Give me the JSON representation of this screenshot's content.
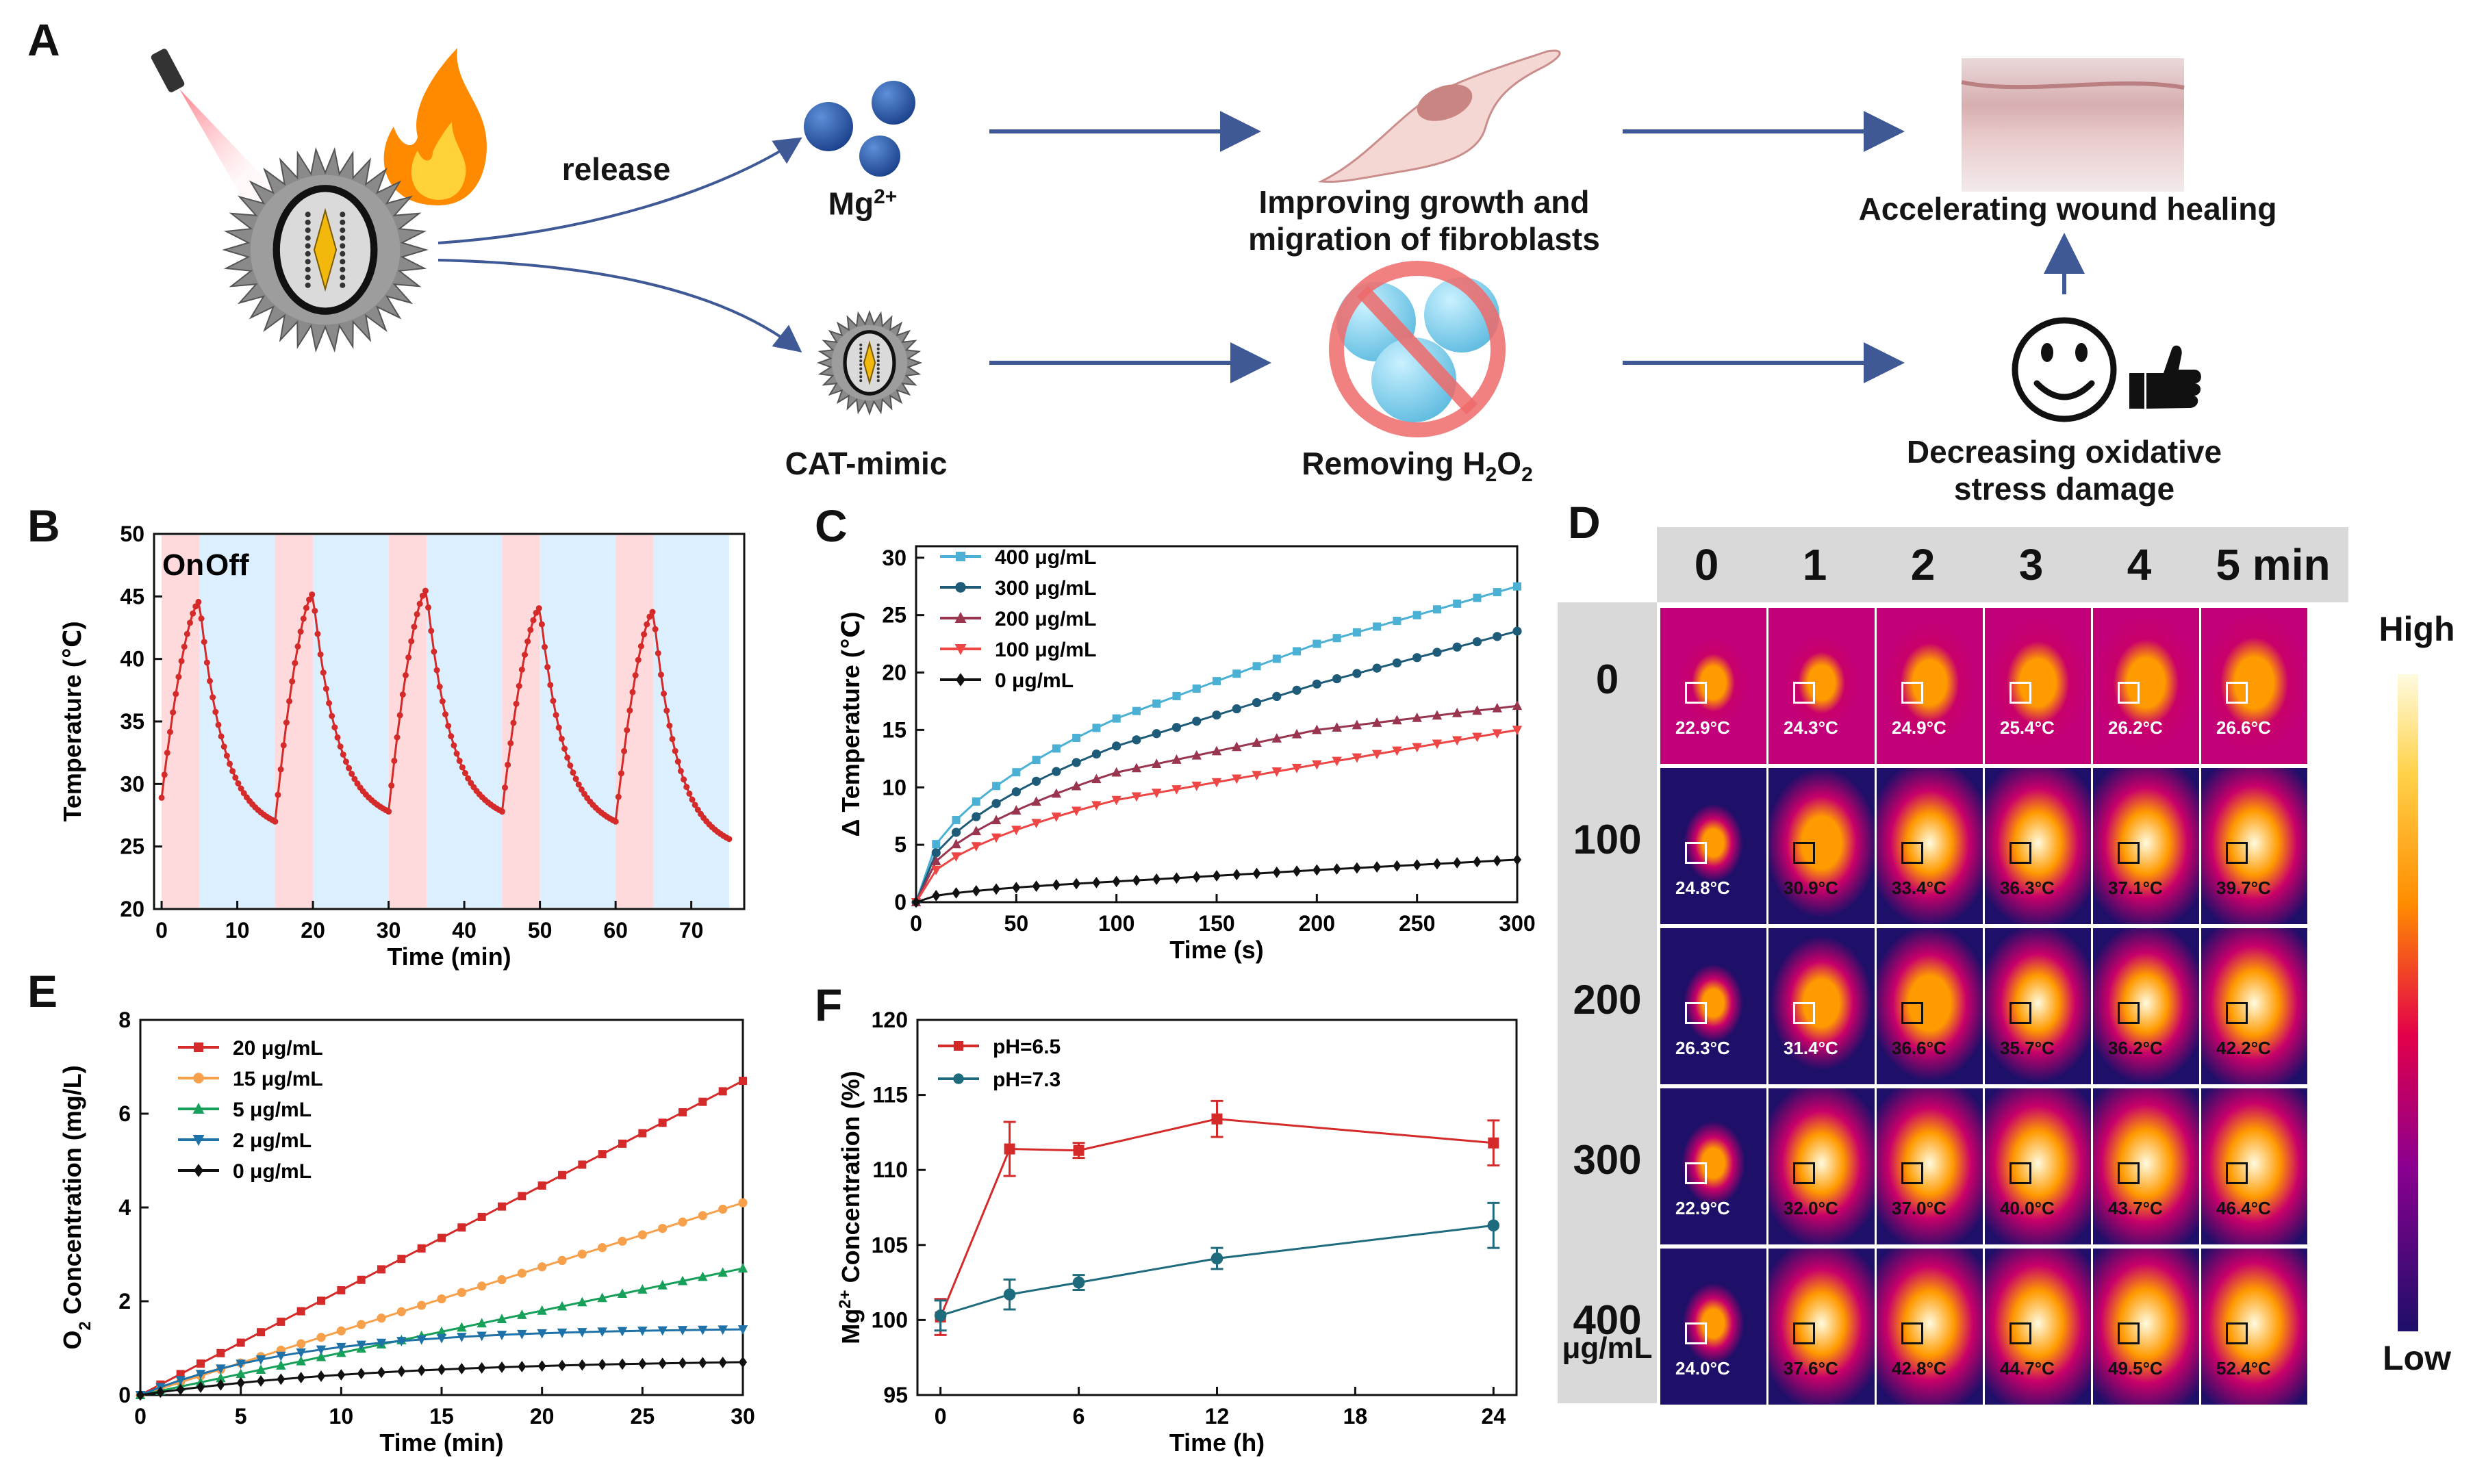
{
  "panels": {
    "A": "A",
    "B": "B",
    "C": "C",
    "D": "D",
    "E": "E",
    "F": "F"
  },
  "schematic": {
    "release": "release",
    "mg_ion": "Mg",
    "mg_charge": "2+",
    "cat_mimic": "CAT-mimic",
    "fibro_line1": "Improving growth and",
    "fibro_line2": "migration of fibroblasts",
    "h2o2_pre": "Removing H",
    "h2o2_s1": "2",
    "h2o2_mid": "O",
    "h2o2_s2": "2",
    "wound": "Accelerating wound healing",
    "ox_line1": "Decreasing oxidative",
    "ox_line2": "stress damage"
  },
  "thermal": {
    "col_headers": [
      "0",
      "1",
      "2",
      "3",
      "4",
      "5 min"
    ],
    "row_labels": [
      "0",
      "100",
      "200",
      "300",
      "400"
    ],
    "row_unit": "μg/mL",
    "scale_high": "High",
    "scale_low": "Low",
    "readings": [
      [
        "22.9°C",
        "24.3°C",
        "24.9°C",
        "25.4°C",
        "26.2°C",
        "26.6°C"
      ],
      [
        "24.8°C",
        "30.9°C",
        "33.4°C",
        "36.3°C",
        "37.1°C",
        "39.7°C"
      ],
      [
        "26.3°C",
        "31.4°C",
        "36.6°C",
        "35.7°C",
        "36.2°C",
        "42.2°C"
      ],
      [
        "22.9°C",
        "32.0°C",
        "37.0°C",
        "40.0°C",
        "43.7°C",
        "46.4°C"
      ],
      [
        "24.0°C",
        "37.6°C",
        "42.8°C",
        "44.7°C",
        "49.5°C",
        "52.4°C"
      ]
    ],
    "intensity": [
      [
        0.18,
        0.25,
        0.45,
        0.5,
        0.55,
        0.6
      ],
      [
        0.06,
        0.62,
        0.78,
        0.82,
        0.85,
        0.88
      ],
      [
        0.06,
        0.5,
        0.68,
        0.72,
        0.74,
        0.92
      ],
      [
        0.1,
        0.78,
        0.84,
        0.9,
        0.95,
        0.97
      ],
      [
        0.08,
        0.82,
        0.9,
        0.94,
        0.97,
        0.99
      ]
    ],
    "colors": {
      "cold": "#1e0f69",
      "mid": "#c8006a",
      "hot": "#ff9a00",
      "white": "#fffbe0"
    }
  },
  "chart_data": [
    {
      "panel": "B",
      "type": "line",
      "xlabel": "Time (min)",
      "ylabel": "Temperature (℃)",
      "xlim": [
        -1,
        77
      ],
      "ylim": [
        20,
        50
      ],
      "xticks": [
        0,
        10,
        20,
        30,
        40,
        50,
        60,
        70
      ],
      "yticks": [
        20,
        25,
        30,
        35,
        40,
        45,
        50
      ],
      "annotations": [
        "On",
        "Off"
      ],
      "on_intervals": [
        [
          0,
          5
        ],
        [
          15,
          20
        ],
        [
          30,
          35
        ],
        [
          45,
          50
        ],
        [
          60,
          65
        ]
      ],
      "off_intervals": [
        [
          5,
          15
        ],
        [
          20,
          30
        ],
        [
          35,
          45
        ],
        [
          50,
          60
        ],
        [
          65,
          75
        ]
      ],
      "cycles": [
        {
          "start": 0,
          "t0": 28.9,
          "peak": 44.6,
          "end": 27.0
        },
        {
          "start": 15,
          "t0": 27.0,
          "peak": 45.2,
          "end": 27.8
        },
        {
          "start": 30,
          "t0": 27.8,
          "peak": 45.5,
          "end": 27.8
        },
        {
          "start": 45,
          "t0": 27.8,
          "peak": 44.1,
          "end": 27.0
        },
        {
          "start": 60,
          "t0": 27.0,
          "peak": 43.8,
          "end": 25.6
        }
      ],
      "color": "#d42a2a"
    },
    {
      "panel": "C",
      "type": "line",
      "xlabel": "Time (s)",
      "ylabel": "Δ Temperature (℃)",
      "xlim": [
        0,
        300
      ],
      "ylim": [
        0,
        31
      ],
      "xticks": [
        0,
        50,
        100,
        150,
        200,
        250,
        300
      ],
      "yticks": [
        0,
        5,
        10,
        15,
        20,
        25,
        30
      ],
      "x": [
        0,
        100,
        200,
        300
      ],
      "series": [
        {
          "name": "400 μg/mL",
          "color": "#4ab0d4",
          "marker": "square",
          "values": [
            0,
            16.0,
            22.5,
            27.5
          ]
        },
        {
          "name": "300 μg/mL",
          "color": "#1d5b78",
          "marker": "circle",
          "values": [
            0,
            13.6,
            19.0,
            23.6
          ]
        },
        {
          "name": "200 μg/mL",
          "color": "#9a3550",
          "marker": "triangle-up",
          "values": [
            0,
            11.3,
            15.0,
            17.1
          ]
        },
        {
          "name": "100 μg/mL",
          "color": "#ee4545",
          "marker": "triangle-down",
          "values": [
            0,
            8.9,
            12.0,
            15.0
          ]
        },
        {
          "name": "0 μg/mL",
          "color": "#111111",
          "marker": "diamond",
          "values": [
            0,
            1.8,
            2.8,
            3.7
          ]
        }
      ]
    },
    {
      "panel": "E",
      "type": "line",
      "xlabel": "Time (min)",
      "ylabel_pre": "O",
      "ylabel_sub": "2",
      "ylabel_post": " Concentration (mg/L)",
      "xlim": [
        0,
        30
      ],
      "ylim": [
        0,
        8
      ],
      "xticks": [
        0,
        5,
        10,
        15,
        20,
        25,
        30
      ],
      "yticks": [
        0,
        2,
        4,
        6,
        8
      ],
      "x": [
        0,
        30
      ],
      "series": [
        {
          "name": "20 μg/mL",
          "color": "#d42a2a",
          "marker": "square",
          "values": [
            0,
            6.7
          ]
        },
        {
          "name": "15 μg/mL",
          "color": "#f7a04c",
          "marker": "circle",
          "values": [
            0,
            4.1
          ]
        },
        {
          "name": "5 μg/mL",
          "color": "#17a05a",
          "marker": "triangle-up",
          "values": [
            0,
            2.7
          ]
        },
        {
          "name": "2 μg/mL",
          "color": "#1f72a8",
          "marker": "triangle-down",
          "values": [
            0,
            1.4
          ]
        },
        {
          "name": "0 μg/mL",
          "color": "#111111",
          "marker": "diamond",
          "values": [
            0,
            0.7
          ]
        }
      ]
    },
    {
      "panel": "F",
      "type": "line",
      "xlabel": "Time (h)",
      "ylabel_pre": "Mg",
      "ylabel_sup": "2+",
      "ylabel_post": " Concentration (%)",
      "xlim": [
        -1,
        25
      ],
      "ylim": [
        95,
        120
      ],
      "xticks": [
        0,
        6,
        12,
        18,
        24
      ],
      "yticks": [
        95,
        100,
        105,
        110,
        115,
        120
      ],
      "x": [
        0,
        3,
        6,
        12,
        24
      ],
      "series": [
        {
          "name": "pH=6.5",
          "color": "#d42a2a",
          "marker": "square",
          "values": [
            100.2,
            111.4,
            111.3,
            113.4,
            111.8
          ],
          "err": [
            1.2,
            1.8,
            0.5,
            1.2,
            1.5
          ]
        },
        {
          "name": "pH=7.3",
          "color": "#1f6b7e",
          "marker": "circle",
          "values": [
            100.3,
            101.7,
            102.5,
            104.1,
            106.3
          ],
          "err": [
            1.0,
            1.0,
            0.5,
            0.7,
            1.5
          ]
        }
      ]
    }
  ]
}
